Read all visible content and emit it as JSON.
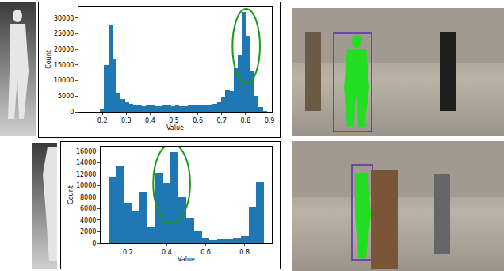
{
  "chart_data": [
    {
      "type": "histogram",
      "x_label": "Value",
      "y_label": "Count",
      "color": "#1f77b4",
      "bins": [
        0.19,
        0.2075,
        0.225,
        0.2425,
        0.26,
        0.2775,
        0.295,
        0.3125,
        0.33,
        0.3475,
        0.365,
        0.3825,
        0.4,
        0.4175,
        0.435,
        0.4525,
        0.47,
        0.4875,
        0.505,
        0.5225,
        0.54,
        0.5575,
        0.575,
        0.5925,
        0.61,
        0.6275,
        0.645,
        0.6625,
        0.68,
        0.6975,
        0.715,
        0.7325,
        0.75,
        0.7675,
        0.785,
        0.8025,
        0.82,
        0.8375,
        0.855,
        0.8725,
        0.89
      ],
      "counts": [
        800,
        15000,
        28000,
        17000,
        6000,
        4000,
        3000,
        2500,
        2200,
        2000,
        1900,
        2100,
        2000,
        1800,
        1900,
        2000,
        2100,
        1900,
        2000,
        1900,
        1800,
        2000,
        2100,
        2200,
        2000,
        2100,
        2300,
        2500,
        3000,
        4500,
        7000,
        6500,
        14000,
        18000,
        32000,
        24000,
        13000,
        5000,
        1500,
        300
      ],
      "xlim": [
        0.1,
        0.91
      ],
      "xticks": [
        0.2,
        0.3,
        0.4,
        0.5,
        0.6,
        0.7,
        0.8,
        0.9
      ],
      "ylim": [
        0,
        33500
      ],
      "yticks": [
        0,
        5000,
        10000,
        15000,
        20000,
        25000,
        30000
      ],
      "highlight": {
        "x": [
          0.745,
          0.86
        ],
        "y": [
          9000,
          33000
        ],
        "color": "#1a9a1a"
      },
      "grid": false
    },
    {
      "type": "histogram",
      "x_label": "Value",
      "y_label": "Count",
      "color": "#1f77b4",
      "bins": [
        0.1,
        0.14,
        0.18,
        0.22,
        0.26,
        0.3,
        0.34,
        0.38,
        0.42,
        0.46,
        0.5,
        0.54,
        0.58,
        0.62,
        0.66,
        0.7,
        0.74,
        0.78,
        0.82,
        0.86,
        0.9
      ],
      "counts": [
        11500,
        13500,
        7000,
        5700,
        9000,
        2700,
        12300,
        10500,
        15800,
        8000,
        4400,
        2000,
        1000,
        600,
        700,
        800,
        1000,
        1200,
        6300,
        10600
      ],
      "xlim": [
        0.06,
        0.94
      ],
      "xticks": [
        0.2,
        0.4,
        0.6,
        0.8
      ],
      "ylim": [
        0,
        16800
      ],
      "yticks": [
        0,
        2000,
        4000,
        6000,
        8000,
        10000,
        12000,
        14000,
        16000
      ],
      "highlight": {
        "x": [
          0.33,
          0.52
        ],
        "y": [
          3500,
          17300
        ],
        "color": "#1a9a1a"
      },
      "grid": false
    }
  ]
}
